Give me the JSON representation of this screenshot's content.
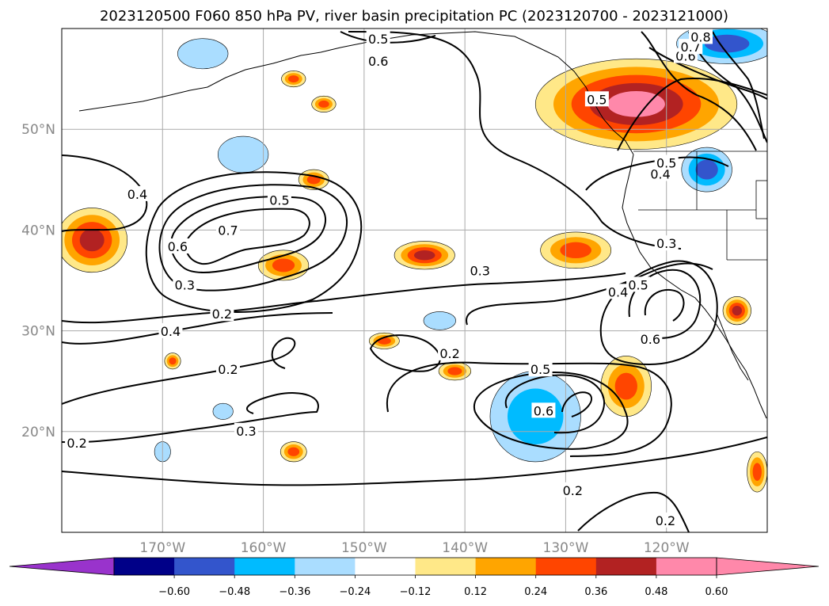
{
  "title": "2023120500 F060 850 hPa PV, river basin precipitation PC (2023120700 - 2023121000)",
  "chart_data": {
    "type": "heatmap",
    "title": "2023120500 F060 850 hPa PV, river basin precipitation PC (2023120700 - 2023121000)",
    "xlim": [
      -180,
      -110
    ],
    "ylim": [
      10,
      60
    ],
    "grid": true,
    "lon_ticks": [
      {
        "value": -170,
        "label": "170°W"
      },
      {
        "value": -160,
        "label": "160°W"
      },
      {
        "value": -150,
        "label": "150°W"
      },
      {
        "value": -140,
        "label": "140°W"
      },
      {
        "value": -130,
        "label": "130°W"
      },
      {
        "value": -120,
        "label": "120°W"
      }
    ],
    "lat_ticks": [
      {
        "value": 50,
        "label": "50°N"
      },
      {
        "value": 40,
        "label": "40°N"
      },
      {
        "value": 30,
        "label": "30°N"
      },
      {
        "value": 20,
        "label": "20°N"
      }
    ],
    "colorbar": {
      "bounds": [
        -0.72,
        -0.6,
        -0.48,
        -0.36,
        -0.24,
        -0.12,
        0.12,
        0.24,
        0.36,
        0.48,
        0.6,
        0.72
      ],
      "colors": [
        "#000088",
        "#3355cc",
        "#00bbff",
        "#aaddff",
        "#ffffff",
        "#ffe888",
        "#ffa500",
        "#ff4500",
        "#b22222",
        "#ff88aa"
      ],
      "under_color": "#9933cc",
      "over_color": "#ff88aa",
      "extend": "both",
      "tick_labels": [
        "−0.60",
        "−0.48",
        "−0.36",
        "−0.24",
        "−0.12",
        "0.12",
        "0.24",
        "0.36",
        "0.48",
        "0.60"
      ],
      "tick_values": [
        -0.6,
        -0.48,
        -0.36,
        -0.24,
        -0.12,
        0.12,
        0.24,
        0.36,
        0.48,
        0.6
      ]
    },
    "shaded_regions": [
      {
        "lon": -177,
        "lat": 39,
        "rx": 3.5,
        "ry": 3.2,
        "value": 0.4
      },
      {
        "lon": -162,
        "lat": 47.5,
        "rx": 2.5,
        "ry": 1.8,
        "value": -0.3
      },
      {
        "lon": -166,
        "lat": 57.5,
        "rx": 2.5,
        "ry": 1.5,
        "value": -0.3
      },
      {
        "lon": -158,
        "lat": 36.5,
        "rx": 2.5,
        "ry": 1.5,
        "value": 0.3
      },
      {
        "lon": -155,
        "lat": 45,
        "rx": 1.5,
        "ry": 1.0,
        "value": 0.25
      },
      {
        "lon": -154,
        "lat": 52.5,
        "rx": 1.2,
        "ry": 0.8,
        "value": 0.25
      },
      {
        "lon": -157,
        "lat": 55,
        "rx": 1.2,
        "ry": 0.8,
        "value": 0.25
      },
      {
        "lon": -144,
        "lat": 37.5,
        "rx": 3.0,
        "ry": 1.4,
        "value": 0.38
      },
      {
        "lon": -129,
        "lat": 38,
        "rx": 3.5,
        "ry": 1.8,
        "value": 0.28
      },
      {
        "lon": -133,
        "lat": 21.5,
        "rx": 4.5,
        "ry": 4.5,
        "value": -0.42
      },
      {
        "lon": -124,
        "lat": 24.5,
        "rx": 2.5,
        "ry": 3.0,
        "value": 0.28
      },
      {
        "lon": -123,
        "lat": 52.5,
        "rx": 10,
        "ry": 4.5,
        "value": 0.5
      },
      {
        "lon": -116,
        "lat": 46,
        "rx": 2.5,
        "ry": 2.2,
        "value": -0.55
      },
      {
        "lon": -114,
        "lat": 58.5,
        "rx": 5,
        "ry": 2,
        "value": -0.55
      },
      {
        "lon": -141,
        "lat": 26,
        "rx": 1.6,
        "ry": 0.9,
        "value": 0.28
      },
      {
        "lon": -148,
        "lat": 29,
        "rx": 1.5,
        "ry": 0.8,
        "value": 0.25
      },
      {
        "lon": -142.5,
        "lat": 31,
        "rx": 1.6,
        "ry": 0.9,
        "value": -0.28
      },
      {
        "lon": -157,
        "lat": 18,
        "rx": 1.3,
        "ry": 1.0,
        "value": 0.28
      },
      {
        "lon": -164,
        "lat": 22,
        "rx": 1.0,
        "ry": 0.8,
        "value": -0.3
      },
      {
        "lon": -170,
        "lat": 18,
        "rx": 0.8,
        "ry": 1.0,
        "value": -0.26
      },
      {
        "lon": -113,
        "lat": 32,
        "rx": 1.4,
        "ry": 1.4,
        "value": 0.38
      },
      {
        "lon": -111,
        "lat": 16,
        "rx": 1.0,
        "ry": 2.0,
        "value": 0.28
      },
      {
        "lon": -169,
        "lat": 27,
        "rx": 0.8,
        "ry": 0.8,
        "value": 0.25
      }
    ],
    "contour_labels": [
      {
        "lon": -172.5,
        "lat": 43.5,
        "text": "0.4"
      },
      {
        "lon": -168.5,
        "lat": 38.3,
        "text": "0.6"
      },
      {
        "lon": -163.5,
        "lat": 39.9,
        "text": "0.7"
      },
      {
        "lon": -158.4,
        "lat": 42.9,
        "text": "0.5"
      },
      {
        "lon": -167.8,
        "lat": 34.5,
        "text": "0.3"
      },
      {
        "lon": -164.1,
        "lat": 31.6,
        "text": "0.2"
      },
      {
        "lon": -169.2,
        "lat": 29.9,
        "text": "0.4"
      },
      {
        "lon": -163.5,
        "lat": 26.1,
        "text": "0.2"
      },
      {
        "lon": -161.7,
        "lat": 20.0,
        "text": "0.3"
      },
      {
        "lon": -178.5,
        "lat": 18.8,
        "text": "0.2"
      },
      {
        "lon": -148.6,
        "lat": 56.7,
        "text": "0.6"
      },
      {
        "lon": -148.6,
        "lat": 58.9,
        "text": "0.5"
      },
      {
        "lon": -141.5,
        "lat": 27.7,
        "text": "0.2"
      },
      {
        "lon": -138.5,
        "lat": 35.9,
        "text": "0.3"
      },
      {
        "lon": -132.5,
        "lat": 26.1,
        "text": "0.5"
      },
      {
        "lon": -132.2,
        "lat": 22.0,
        "text": "0.6"
      },
      {
        "lon": -129.3,
        "lat": 14.1,
        "text": "0.2"
      },
      {
        "lon": -120.1,
        "lat": 11.1,
        "text": "0.2"
      },
      {
        "lon": -124.8,
        "lat": 33.8,
        "text": "0.4"
      },
      {
        "lon": -122.8,
        "lat": 34.5,
        "text": "0.5"
      },
      {
        "lon": -121.6,
        "lat": 29.1,
        "text": "0.6"
      },
      {
        "lon": -120.0,
        "lat": 38.6,
        "text": "0.3"
      },
      {
        "lon": -120.6,
        "lat": 45.5,
        "text": "0.4"
      },
      {
        "lon": -120.0,
        "lat": 46.6,
        "text": "0.5"
      },
      {
        "lon": -118.1,
        "lat": 57.2,
        "text": "0.6"
      },
      {
        "lon": -117.6,
        "lat": 58.1,
        "text": "0.7"
      },
      {
        "lon": -116.6,
        "lat": 59.1,
        "text": "0.8"
      },
      {
        "lon": -126.9,
        "lat": 52.9,
        "text": "0.5"
      }
    ]
  }
}
